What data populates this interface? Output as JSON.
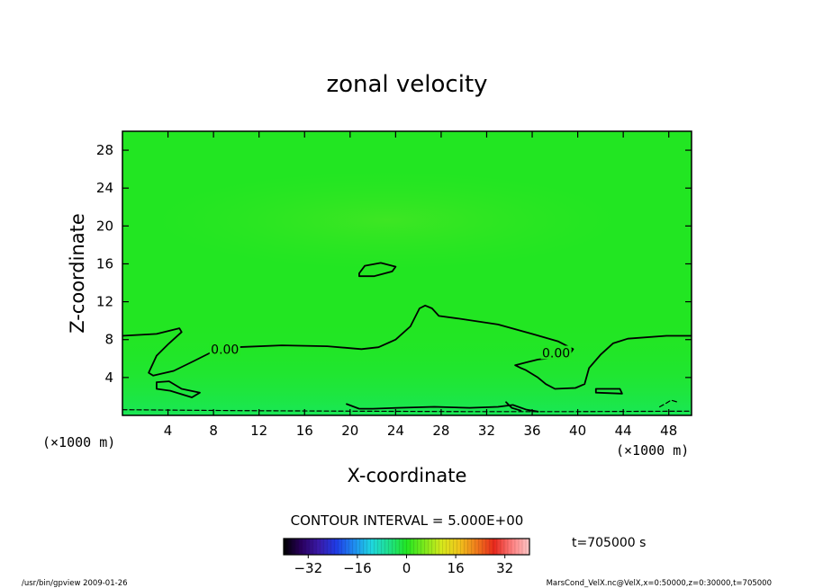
{
  "title": "zonal velocity",
  "xlabel": "X-coordinate",
  "ylabel": "Z-coordinate",
  "x_unit": "(×1000 m)",
  "z_unit": "(×1000 m)",
  "contour_interval": "CONTOUR INTERVAL = 5.000E+00",
  "time_label": "t=705000 s",
  "footer_left": "/usr/bin/gpview  2009-01-26",
  "footer_right": "MarsCond_VelX.nc@VelX,x=0:50000,z=0:30000,t=705000",
  "contour_labels": [
    {
      "text": "0.00",
      "x": 9.0,
      "z": 7.0
    },
    {
      "text": "0.00",
      "x": 38.1,
      "z": 6.6
    }
  ],
  "colors": {
    "field": "#22e622",
    "axes": "#000000",
    "contour": "#000000"
  },
  "colorbar": {
    "ticks": [
      -32,
      -16,
      0,
      16,
      32
    ],
    "min": -40,
    "max": 40,
    "stops": [
      "#000000",
      "#2a005e",
      "#3a1aa8",
      "#1f3ce6",
      "#1f8cf0",
      "#1fd6e0",
      "#1fe08a",
      "#22e622",
      "#7ae81c",
      "#d6e81c",
      "#f0c41c",
      "#f07a1c",
      "#e8281c",
      "#ff8080",
      "#ffc8c8"
    ]
  },
  "chart_data": {
    "type": "heatmap",
    "title": "zonal velocity",
    "xlabel": "X-coordinate",
    "ylabel": "Z-coordinate",
    "xlim": [
      0,
      50
    ],
    "ylim": [
      0,
      30
    ],
    "xticks": [
      4,
      8,
      12,
      16,
      20,
      24,
      28,
      32,
      36,
      40,
      44,
      48
    ],
    "yticks": [
      4,
      8,
      12,
      16,
      20,
      24,
      28
    ],
    "contour_interval": 5.0,
    "contours": [
      {
        "level": 0,
        "points": [
          [
            0,
            8.4
          ],
          [
            3,
            8.6
          ],
          [
            5,
            9.2
          ],
          [
            5.2,
            8.8
          ],
          [
            4,
            7.5
          ],
          [
            3,
            6.3
          ],
          [
            2.3,
            4.5
          ],
          [
            2.7,
            4.2
          ],
          [
            4.5,
            4.7
          ],
          [
            6.2,
            5.7
          ],
          [
            7.7,
            6.6
          ],
          [
            10,
            7.2
          ],
          [
            14,
            7.4
          ],
          [
            18,
            7.3
          ],
          [
            21,
            7.0
          ],
          [
            22.5,
            7.2
          ],
          [
            24,
            8.0
          ],
          [
            25.3,
            9.4
          ],
          [
            26.1,
            11.3
          ],
          [
            26.6,
            11.6
          ],
          [
            27.2,
            11.3
          ],
          [
            27.8,
            10.5
          ],
          [
            29.7,
            10.2
          ],
          [
            33,
            9.6
          ],
          [
            36,
            8.6
          ],
          [
            38.3,
            7.8
          ],
          [
            39.6,
            7.0
          ],
          [
            39.2,
            6.3
          ],
          [
            38,
            6.1
          ],
          [
            36.5,
            5.9
          ],
          [
            35.5,
            5.6
          ],
          [
            34.5,
            5.3
          ],
          [
            35,
            5.0
          ],
          [
            35.4,
            4.8
          ],
          [
            36.5,
            4.0
          ],
          [
            37.2,
            3.3
          ],
          [
            38,
            2.8
          ],
          [
            39.8,
            2.9
          ],
          [
            40.6,
            3.3
          ],
          [
            41,
            5.0
          ],
          [
            42,
            6.4
          ],
          [
            43.1,
            7.6
          ],
          [
            44.4,
            8.1
          ],
          [
            47.8,
            8.4
          ],
          [
            50,
            8.4
          ]
        ]
      },
      {
        "level": 0,
        "closed": true,
        "points": [
          [
            20.8,
            15.0
          ],
          [
            21.3,
            15.8
          ],
          [
            22.7,
            16.1
          ],
          [
            24,
            15.7
          ],
          [
            23.7,
            15.2
          ],
          [
            22.1,
            14.7
          ],
          [
            20.8,
            14.7
          ]
        ]
      },
      {
        "level": 0,
        "closed": true,
        "points": [
          [
            3,
            3.5
          ],
          [
            4.1,
            3.6
          ],
          [
            5.2,
            2.8
          ],
          [
            6.8,
            2.4
          ],
          [
            6.1,
            1.9
          ],
          [
            4.2,
            2.6
          ],
          [
            3,
            2.8
          ]
        ]
      },
      {
        "level": 0,
        "closed": true,
        "points": [
          [
            41.6,
            2.8
          ],
          [
            43.7,
            2.8
          ],
          [
            43.9,
            2.3
          ],
          [
            41.6,
            2.4
          ]
        ]
      },
      {
        "level": 0,
        "points": [
          [
            19.7,
            1.2
          ],
          [
            20.8,
            0.7
          ],
          [
            22,
            0.7
          ],
          [
            24.2,
            0.8
          ],
          [
            27.4,
            0.9
          ],
          [
            30.5,
            0.8
          ],
          [
            33,
            0.9
          ],
          [
            34.3,
            1.1
          ],
          [
            35.5,
            0.6
          ],
          [
            36.5,
            0.4
          ]
        ]
      },
      {
        "level": 0,
        "points": [
          [
            33.7,
            1.4
          ],
          [
            34.2,
            0.8
          ],
          [
            35,
            0.5
          ]
        ]
      },
      {
        "level": -5,
        "dashed": true,
        "points": [
          [
            0,
            0.6
          ],
          [
            10,
            0.5
          ],
          [
            20,
            0.45
          ],
          [
            30,
            0.4
          ],
          [
            40,
            0.4
          ],
          [
            50,
            0.45
          ]
        ]
      },
      {
        "level": -5,
        "dashed": true,
        "points": [
          [
            47.2,
            0.9
          ],
          [
            47.8,
            1.3
          ],
          [
            48.2,
            1.6
          ],
          [
            48.8,
            1.4
          ]
        ]
      }
    ]
  }
}
